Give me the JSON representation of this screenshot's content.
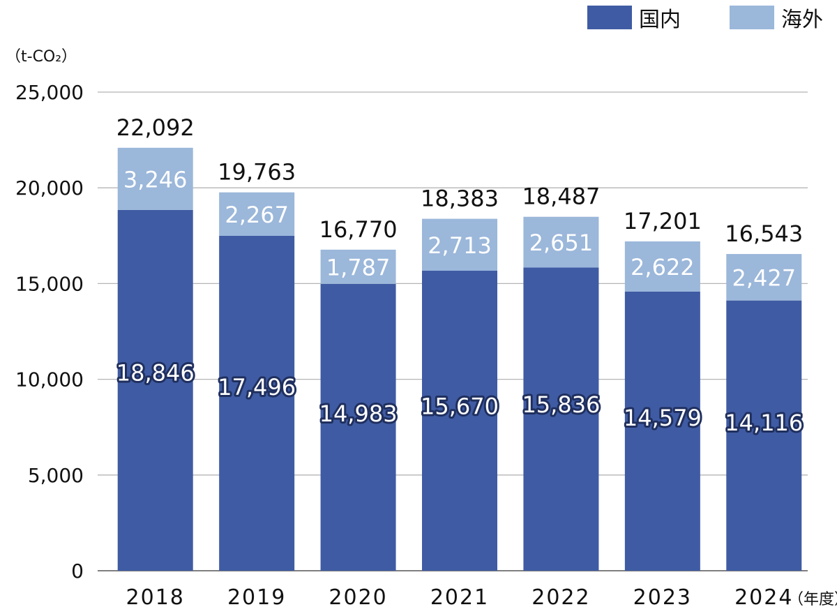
{
  "chart_data": {
    "type": "bar",
    "stacked": true,
    "unit_label": "（t-CO₂）",
    "x_unit_label": "（年度）",
    "categories": [
      "2018",
      "2019",
      "2020",
      "2021",
      "2022",
      "2023",
      "2024"
    ],
    "series": [
      {
        "name": "国内",
        "color": "#3f5ba3",
        "values": [
          18846,
          17496,
          14983,
          15670,
          15836,
          14579,
          14116
        ]
      },
      {
        "name": "海外",
        "color": "#9bb7da",
        "values": [
          3246,
          2267,
          1787,
          2713,
          2651,
          2622,
          2427
        ]
      }
    ],
    "data_labels": {
      "国内": [
        "18,846",
        "17,496",
        "14,983",
        "15,670",
        "15,836",
        "14,579",
        "14,116"
      ],
      "海外": [
        "3,246",
        "2,267",
        "1,787",
        "2,713",
        "2,651",
        "2,622",
        "2,427"
      ]
    },
    "totals": [
      "22,092",
      "19,763",
      "16,770",
      "18,383",
      "18,487",
      "17,201",
      "16,543"
    ],
    "yticks": [
      "0",
      "5,000",
      "10,000",
      "15,000",
      "20,000",
      "25,000"
    ],
    "ytick_values": [
      0,
      5000,
      10000,
      15000,
      20000,
      25000
    ],
    "ylim": [
      0,
      25000
    ],
    "grid": true,
    "legend_position": "top-right"
  }
}
